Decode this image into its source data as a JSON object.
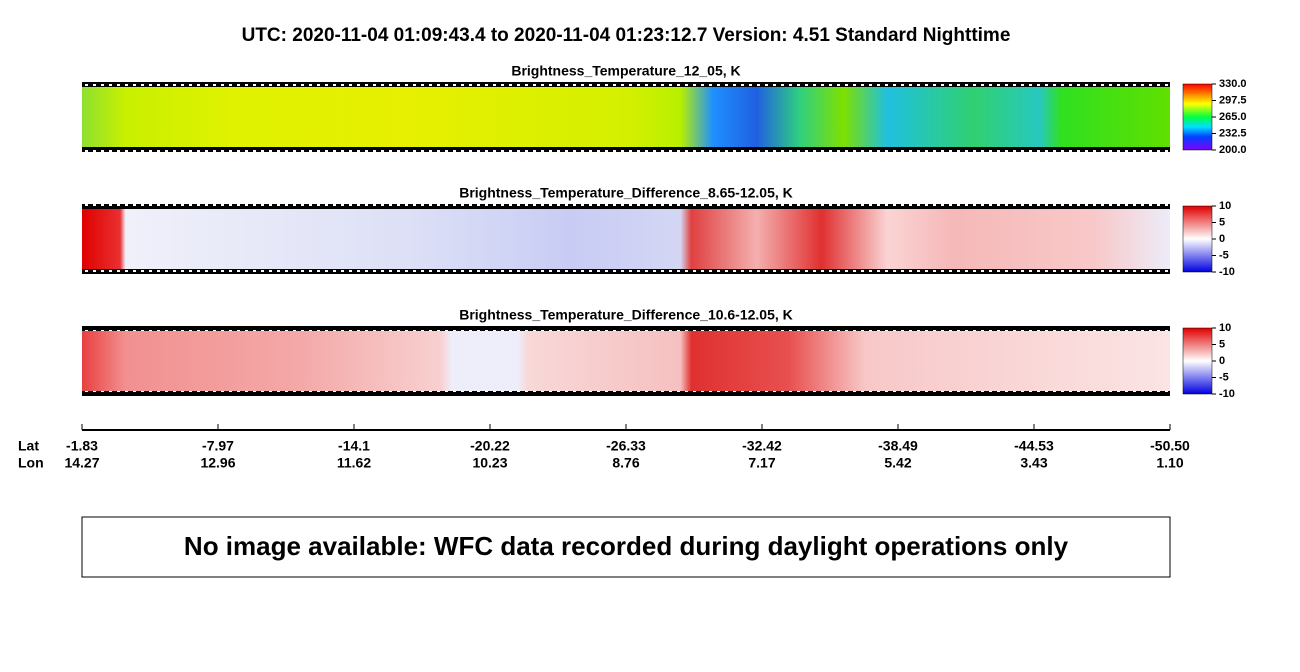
{
  "title": "UTC:  2020-11-04   01:09:43.4  to  2020-11-04   01:23:12.7    Version: 4.51  Standard Nighttime",
  "chart_data": [
    {
      "type": "heatmap",
      "title": "Brightness_Temperature_12_05, K",
      "colormap": "rainbow",
      "zlim": [
        200,
        330
      ],
      "zticks": [
        {
          "value": 200,
          "label": "200.0"
        },
        232.5,
        {
          "value": 265,
          "label": "265.0"
        },
        297.5,
        {
          "value": 330,
          "label": "330.0"
        }
      ]
    },
    {
      "type": "heatmap",
      "title": "Brightness_Temperature_Difference_8.65-12.05, K",
      "colormap": "diverging",
      "zlim": [
        -10,
        10
      ],
      "zticks": [
        -10,
        -5,
        0,
        5,
        10
      ]
    },
    {
      "type": "heatmap",
      "title": "Brightness_Temperature_Difference_10.6-12.05, K",
      "colormap": "diverging",
      "zlim": [
        -10,
        10
      ],
      "zticks": [
        -10,
        -5,
        0,
        5,
        10
      ]
    }
  ],
  "x_axis": {
    "lat_label": "Lat",
    "lon_label": "Lon",
    "lat": [
      -1.83,
      -7.97,
      -14.1,
      -20.22,
      -26.33,
      -32.42,
      -38.49,
      -44.53,
      {
        "value": -50.5,
        "label": "-50.50"
      }
    ],
    "lon": [
      14.27,
      12.96,
      11.62,
      10.23,
      8.76,
      7.17,
      5.42,
      3.43,
      {
        "value": 1.1,
        "label": "1.10"
      }
    ]
  },
  "notice": "No image available: WFC data recorded during daylight operations only"
}
